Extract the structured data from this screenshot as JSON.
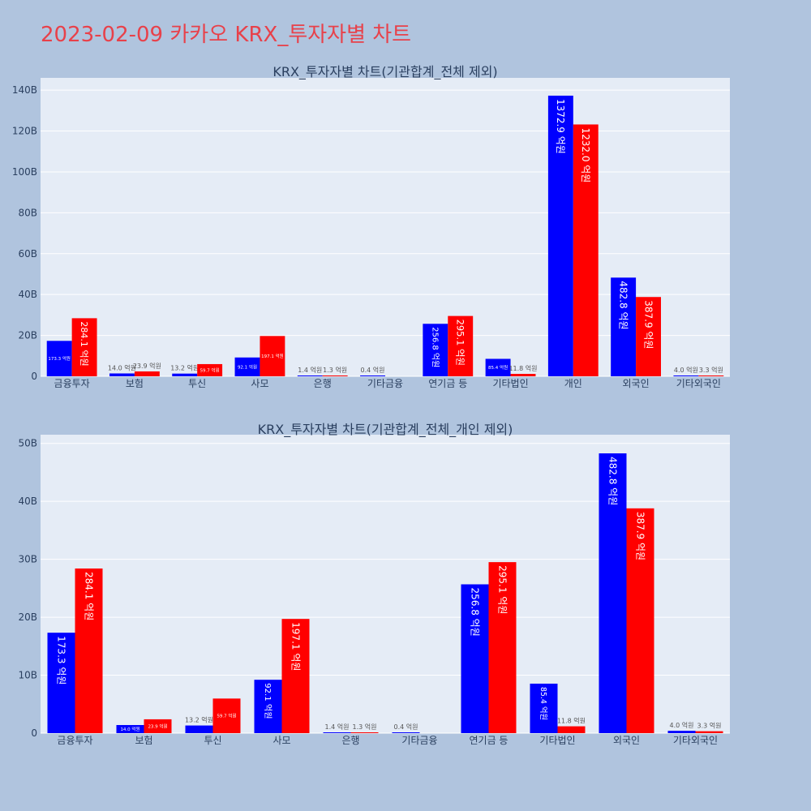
{
  "page_title": "2023-02-09 카카오 KRX_투자자별 차트",
  "colors": {
    "sell": "#0000ff",
    "buy": "#ff0000",
    "title": "#e8414a",
    "background": "#b0c4de",
    "plot_bg": "#e5ecf6"
  },
  "chart_data": [
    {
      "type": "bar",
      "title": "KRX_투자자별 차트(기관합계_전체 제외)",
      "categories": [
        "금융투자",
        "보험",
        "투신",
        "사모",
        "은행",
        "기타금융",
        "연기금 등",
        "기타법인",
        "개인",
        "외국인",
        "기타외국인"
      ],
      "series": [
        {
          "values": [
            173.3,
            14.0,
            13.2,
            92.1,
            1.4,
            0.4,
            256.8,
            85.4,
            1372.9,
            482.8,
            4.0
          ],
          "labels": [
            "173.3 억원",
            "14.0 억원",
            "13.2 억원",
            "92.1 억원",
            "1.4 억원",
            "0.4 억원",
            "256.8 억원",
            "85.4 억원",
            "1372.9 억원",
            "482.8 억원",
            "4.0 억원"
          ]
        },
        {
          "values": [
            284.1,
            23.9,
            59.7,
            197.1,
            1.3,
            0,
            295.1,
            11.8,
            1232.0,
            387.9,
            3.3
          ],
          "labels": [
            "284.1 억원",
            "23.9 억원",
            "59.7 억원",
            "197.1 억원",
            "1.3 억원",
            "",
            "295.1 억원",
            "11.8 억원",
            "1232.0 억원",
            "387.9 억원",
            "3.3 억원"
          ]
        }
      ],
      "yticks": [
        "0",
        "20B",
        "40B",
        "60B",
        "80B",
        "100B",
        "120B",
        "140B"
      ],
      "ylim": [
        0,
        1460
      ],
      "grid": true
    },
    {
      "type": "bar",
      "title": "KRX_투자자별 차트(기관합계_전체_개인 제외)",
      "categories": [
        "금융투자",
        "보험",
        "투신",
        "사모",
        "은행",
        "기타금융",
        "연기금 등",
        "기타법인",
        "외국인",
        "기타외국인"
      ],
      "series": [
        {
          "values": [
            173.3,
            14.0,
            13.2,
            92.1,
            1.4,
            0.4,
            256.8,
            85.4,
            482.8,
            4.0
          ],
          "labels": [
            "173.3 억원",
            "14.0 억원",
            "13.2 억원",
            "92.1 억원",
            "1.4 억원",
            "0.4 억원",
            "256.8 억원",
            "85.4 억원",
            "482.8 억원",
            "4.0 억원"
          ]
        },
        {
          "values": [
            284.1,
            23.9,
            59.7,
            197.1,
            1.3,
            0,
            295.1,
            11.8,
            387.9,
            3.3
          ],
          "labels": [
            "284.1 억원",
            "23.9 억원",
            "59.7 억원",
            "197.1 억원",
            "1.3 억원",
            "",
            "295.1 억원",
            "11.8 억원",
            "387.9 억원",
            "3.3 억원"
          ]
        }
      ],
      "yticks": [
        "0",
        "10B",
        "20B",
        "30B",
        "40B",
        "50B"
      ],
      "ylim": [
        0,
        515
      ],
      "grid": true
    }
  ]
}
